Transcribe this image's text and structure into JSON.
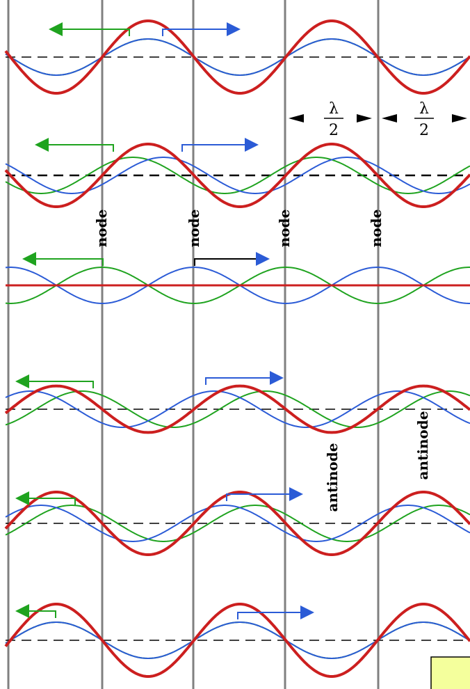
{
  "labels": {
    "node": "node",
    "antinode": "antinode",
    "lambda": "λ",
    "two": "2",
    "corner_text": ""
  },
  "colors": {
    "standing": "#cc1f1f",
    "left_wave": "#1fa31f",
    "right_wave": "#2b5bd6",
    "node_line": "#808080",
    "axis": "#000000",
    "corner_box": "#f4ff9c"
  },
  "wave": {
    "wavelength_over_node_spacing": 2,
    "node_count_visible": 5,
    "standing_amplitude_relative": 1.0,
    "traveling_amplitude_relative": 0.5
  },
  "rows": [
    {
      "phase_deg": 0
    },
    {
      "phase_deg": 30
    },
    {
      "phase_deg": 90
    },
    {
      "phase_deg": 130
    },
    {
      "phase_deg": 150
    },
    {
      "phase_deg": 180
    }
  ]
}
